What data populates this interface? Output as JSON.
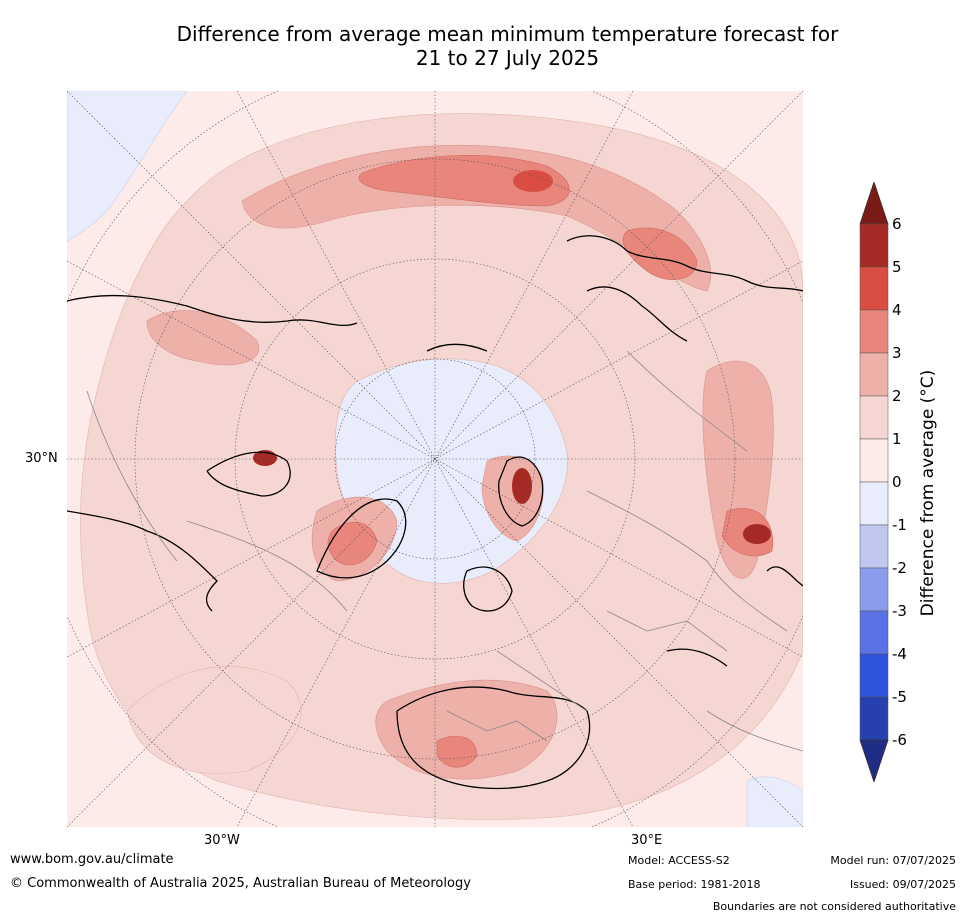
{
  "title": {
    "line1": "Difference from average mean minimum temperature forecast for",
    "line2": "21 to 27 July 2025"
  },
  "axis_labels": {
    "lat_30n": "30°N",
    "lon_30w": "30°W",
    "lon_30e": "30°E"
  },
  "colorbar": {
    "label": "Difference from average (°C)",
    "ticks": [
      "6",
      "5",
      "4",
      "3",
      "2",
      "1",
      "0",
      "-1",
      "-2",
      "-3",
      "-4",
      "-5",
      "-6"
    ],
    "colors": [
      "#7a1b16",
      "#a52a24",
      "#d94d44",
      "#e8867c",
      "#eeb1aa",
      "#f6d6d2",
      "#fcebe8",
      "#e8ecfb",
      "#c0c8f2",
      "#8c9cec",
      "#5a72e6",
      "#2f53dd",
      "#2740b0",
      "#1f2d85"
    ]
  },
  "footer": {
    "website": "www.bom.gov.au/climate",
    "copyright": "© Commonwealth of Australia 2025, Australian Bureau of Meteorology",
    "model": "Model: ACCESS-S2",
    "base_period": "Base period: 1981-2018",
    "model_run": "Model run: 07/07/2025",
    "issued": "Issued: 09/07/2025",
    "disclaimer": "Boundaries are not considered authoritative"
  }
}
